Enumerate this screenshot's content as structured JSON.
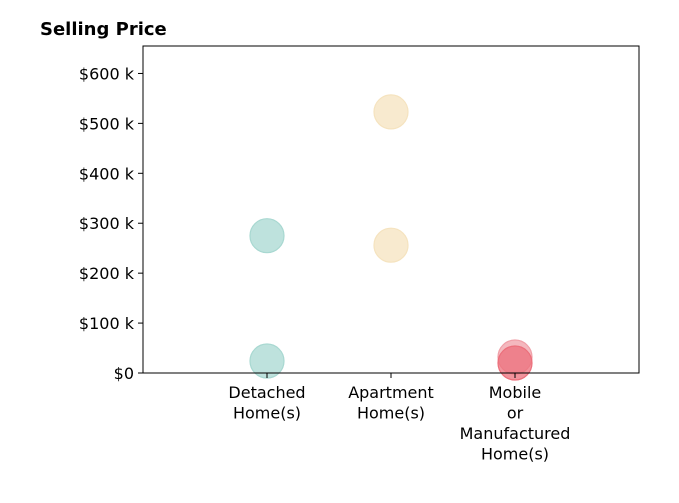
{
  "chart_data": {
    "type": "scatter",
    "title": "Selling Price",
    "xlabel": "",
    "ylabel": "",
    "categories": [
      [
        "Detached",
        "Home(s)"
      ],
      [
        "Apartment",
        "Home(s)"
      ],
      [
        "Mobile",
        "or",
        "Manufactured",
        "Home(s)"
      ]
    ],
    "ylim": [
      0,
      655
    ],
    "y_ticks": [
      {
        "value": 0,
        "label": "$0"
      },
      {
        "value": 100,
        "label": "$100 k"
      },
      {
        "value": 200,
        "label": "$200 k"
      },
      {
        "value": 300,
        "label": "$300 k"
      },
      {
        "value": 400,
        "label": "$400 k"
      },
      {
        "value": 500,
        "label": "$500 k"
      },
      {
        "value": 600,
        "label": "$600 k"
      }
    ],
    "points": [
      {
        "category": 0,
        "value": 275,
        "color": "#a8d8d1"
      },
      {
        "category": 0,
        "value": 24,
        "color": "#a8d8d1"
      },
      {
        "category": 1,
        "value": 523,
        "color": "#f5e3bf"
      },
      {
        "category": 1,
        "value": 256,
        "color": "#f5e3bf"
      },
      {
        "category": 2,
        "value": 32,
        "color": "#f0a0a8"
      },
      {
        "category": 2,
        "value": 20,
        "color": "#ec6f7b"
      }
    ],
    "grid": false,
    "legend": "none"
  }
}
